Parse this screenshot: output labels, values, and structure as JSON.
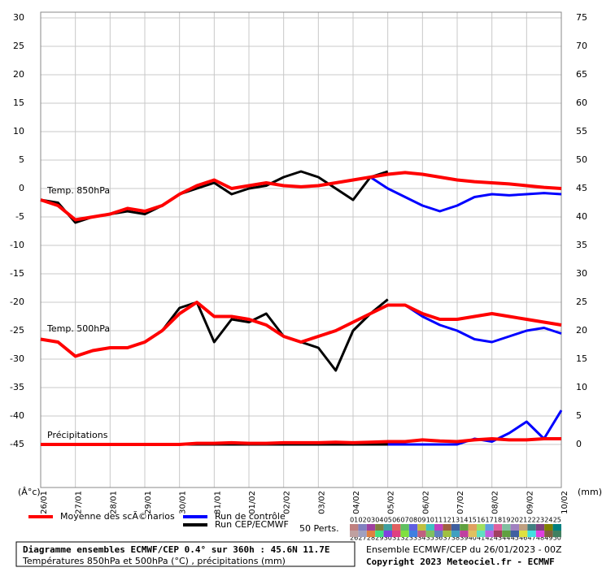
{
  "chart_data": {
    "type": "line",
    "x_unit_label": "(Â°c)",
    "y2_unit_label": "(mm)",
    "x": [
      0,
      12,
      24,
      36,
      48,
      60,
      72,
      84,
      96,
      108,
      120,
      132,
      144,
      156,
      168,
      180,
      192,
      204,
      216,
      228,
      240,
      252,
      264,
      276,
      288,
      300,
      312,
      324,
      336,
      348,
      360
    ],
    "xlim": [
      0,
      360
    ],
    "xticks": [
      {
        "value": 0,
        "label": "26/01"
      },
      {
        "value": 24,
        "label": "27/01"
      },
      {
        "value": 48,
        "label": "28/01"
      },
      {
        "value": 72,
        "label": "29/01"
      },
      {
        "value": 96,
        "label": "30/01"
      },
      {
        "value": 120,
        "label": "31/01"
      },
      {
        "value": 144,
        "label": "01/02"
      },
      {
        "value": 168,
        "label": "02/02"
      },
      {
        "value": 192,
        "label": "03/02"
      },
      {
        "value": 216,
        "label": "04/02"
      },
      {
        "value": 240,
        "label": "05/02"
      },
      {
        "value": 264,
        "label": "06/02"
      },
      {
        "value": 288,
        "label": "07/02"
      },
      {
        "value": 312,
        "label": "08/02"
      },
      {
        "value": 336,
        "label": "09/02"
      },
      {
        "value": 360,
        "label": "10/02"
      }
    ],
    "ylim": [
      -53,
      33
    ],
    "yticks": [
      -45,
      -40,
      -35,
      -30,
      -25,
      -20,
      -15,
      -10,
      -5,
      0,
      5,
      10,
      15,
      20,
      25,
      30
    ],
    "y2lim": [
      -8,
      78
    ],
    "y2ticks": [
      0,
      5,
      10,
      15,
      20,
      25,
      30,
      35,
      40,
      45,
      50,
      55,
      60,
      65,
      70,
      75
    ],
    "grid": true,
    "level_labels": {
      "t850": "Temp. 850hPa",
      "t500": "Temp. 500hPa",
      "precip": "Précipitations"
    },
    "series": [
      {
        "name": "Moyenne des scÃ©narios",
        "color": "#ff0000",
        "values_850": [
          -2,
          -3,
          -5.5,
          -5,
          -4.5,
          -3.5,
          -4,
          -3,
          -1,
          0.5,
          1.5,
          0,
          0.5,
          1,
          0.5,
          0.3,
          0.5,
          1,
          1.5,
          2,
          2.5,
          2.8,
          2.5,
          2,
          1.5,
          1.2,
          1,
          0.8,
          0.5,
          0.2,
          0
        ],
        "values_500": [
          -26.5,
          -27,
          -29.5,
          -28.5,
          -28,
          -28,
          -27,
          -25,
          -22,
          -20,
          -22.5,
          -22.5,
          -23,
          -24,
          -26,
          -27,
          -26,
          -25,
          -23.5,
          -22,
          -20.5,
          -20.5,
          -22,
          -23,
          -23,
          -22.5,
          -22,
          -22.5,
          -23,
          -23.5,
          -24
        ],
        "values_precip": [
          0,
          0,
          0,
          0,
          0,
          0,
          0,
          0,
          0,
          0.2,
          0.2,
          0.3,
          0.2,
          0.2,
          0.3,
          0.3,
          0.3,
          0.4,
          0.3,
          0.4,
          0.5,
          0.5,
          0.8,
          0.6,
          0.5,
          0.8,
          1,
          0.8,
          0.8,
          1,
          1
        ]
      },
      {
        "name": "Run de contrôle",
        "color": "#0000ff",
        "values_850": [
          -2,
          -3,
          -5.5,
          -5,
          -4.5,
          -3.5,
          -4,
          -3,
          -1,
          0.5,
          1.5,
          0,
          0.5,
          1,
          0.5,
          0.3,
          0.5,
          1,
          1.5,
          2,
          0,
          -1.5,
          -3,
          -4,
          -3,
          -1.5,
          -1,
          -1.2,
          -1,
          -0.8,
          -1
        ],
        "values_500": [
          -26.5,
          -27,
          -29.5,
          -28.5,
          -28,
          -28,
          -27,
          -25,
          -22,
          -20,
          -22.5,
          -22.5,
          -23,
          -24,
          -26,
          -27,
          -26,
          -25,
          -23.5,
          -22,
          -20.5,
          -20.5,
          -22.5,
          -24,
          -25,
          -26.5,
          -27,
          -26,
          -25,
          -24.5,
          -25.5
        ],
        "values_precip": [
          0,
          0,
          0,
          0,
          0,
          0,
          0,
          0,
          0,
          0,
          0,
          0,
          0,
          0,
          0,
          0,
          0,
          0,
          0,
          0,
          0,
          0,
          0,
          0,
          0,
          1,
          0.5,
          2,
          4,
          1,
          6
        ]
      },
      {
        "name": "Run CEP/ECMWF",
        "color": "#000000",
        "values_850": [
          -2,
          -2.5,
          -6,
          -5,
          -4.5,
          -4,
          -4.5,
          -3,
          -1,
          0,
          1,
          -1,
          0,
          0.5,
          2,
          3,
          2,
          0,
          -2,
          2,
          3,
          null,
          null,
          null,
          null,
          null,
          null,
          null,
          null,
          null,
          null
        ],
        "values_500": [
          -26.5,
          -27,
          -29.5,
          -28.5,
          -28,
          -28,
          -27,
          -25,
          -21,
          -20,
          -27,
          -23,
          -23.5,
          -22,
          -26,
          -27,
          -28,
          -32,
          -25,
          -22,
          -19.5,
          null,
          null,
          null,
          null,
          null,
          null,
          null,
          null,
          null,
          null
        ],
        "values_precip": [
          0,
          0,
          0,
          0,
          0,
          0,
          0,
          0,
          0,
          0,
          0,
          0,
          0,
          0,
          0,
          0,
          0,
          0,
          0,
          0,
          0,
          null,
          null,
          null,
          null,
          null,
          null,
          null,
          null,
          null,
          null
        ]
      }
    ],
    "perturbations": {
      "label": "50 Perts.",
      "members": [
        "01",
        "02",
        "03",
        "04",
        "05",
        "06",
        "07",
        "08",
        "09",
        "10",
        "11",
        "12",
        "13",
        "14",
        "15",
        "16",
        "17",
        "18",
        "19",
        "20",
        "21",
        "22",
        "23",
        "24",
        "25",
        "26",
        "27",
        "28",
        "29",
        "30",
        "31",
        "32",
        "33",
        "34",
        "35",
        "36",
        "37",
        "38",
        "39",
        "40",
        "41",
        "42",
        "43",
        "44",
        "45",
        "46",
        "47",
        "48",
        "49",
        "50"
      ],
      "colors": [
        "#c08080",
        "#8080c0",
        "#a040a0",
        "#808040",
        "#40a0a0",
        "#e06060",
        "#60c060",
        "#6060e0",
        "#c0c040",
        "#40c0c0",
        "#c040c0",
        "#a06040",
        "#4060a0",
        "#60a040",
        "#e0a060",
        "#a0e060",
        "#60a0e0",
        "#e060a0",
        "#80c0a0",
        "#a080c0",
        "#c0a080",
        "#408080",
        "#804080",
        "#808000",
        "#008080",
        "#c0a0a0",
        "#a0a0c0",
        "#e08040",
        "#40e080",
        "#8040e0",
        "#e04080",
        "#80e040",
        "#4080e0",
        "#c06080",
        "#80c060",
        "#6080c0",
        "#a0c040",
        "#40a0c0",
        "#c040a0",
        "#e0c060",
        "#60e0c0",
        "#c060e0",
        "#a04060",
        "#60a040",
        "#4060a0",
        "#e0e040",
        "#40e0e0",
        "#e040e0",
        "#806040",
        "#408060"
      ]
    },
    "footer": {
      "line1": "Diagramme ensembles ECMWF/CEP 0.4° sur 360h : 45.6N 11.7E",
      "line2": "Températures 850hPa et 500hPa (°C) , précipitations (mm)",
      "line3": "Ensemble ECMWF/CEP du 26/01/2023 - 00Z",
      "line4": "Copyright 2023 Meteociel.fr - ECMWF"
    }
  }
}
